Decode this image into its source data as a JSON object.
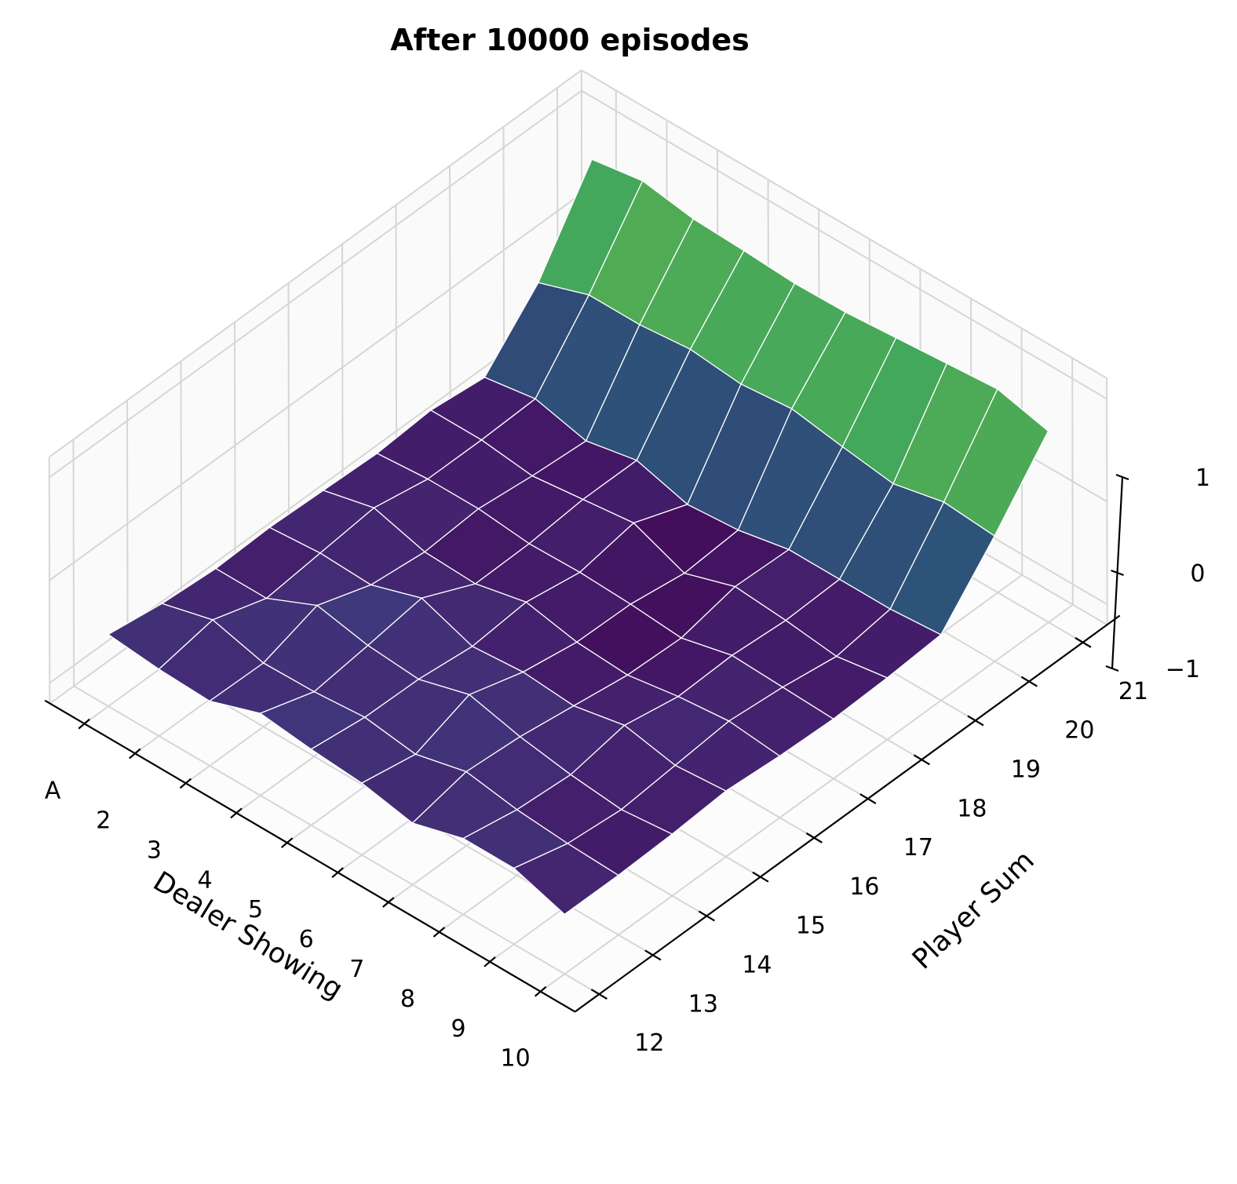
{
  "chart_data": {
    "type": "surface",
    "title": "After 10000 episodes",
    "xlabel": "Dealer Showing",
    "ylabel": "Player Sum",
    "zlabel": "",
    "x_ticks": [
      "A",
      "2",
      "3",
      "4",
      "5",
      "6",
      "7",
      "8",
      "9",
      "10"
    ],
    "y_ticks": [
      "12",
      "13",
      "14",
      "15",
      "16",
      "17",
      "18",
      "19",
      "20",
      "21"
    ],
    "z_ticks": [
      "−1",
      "0",
      "1"
    ],
    "zlim": [
      -1,
      1
    ],
    "colormap": "viridis",
    "grid": true,
    "values": [
      [
        -0.5,
        -0.58,
        -0.62,
        -0.6,
        -0.62,
        -0.64,
        -0.6,
        -0.66,
        -0.12,
        0.7
      ],
      [
        -0.55,
        -0.45,
        -0.62,
        -0.56,
        -0.5,
        -0.6,
        -0.6,
        -0.58,
        0.05,
        0.78
      ],
      [
        -0.57,
        -0.58,
        -0.4,
        -0.58,
        -0.64,
        -0.6,
        -0.66,
        -0.7,
        0.05,
        0.7
      ],
      [
        -0.4,
        -0.57,
        -0.5,
        -0.42,
        -0.66,
        -0.65,
        -0.6,
        -0.6,
        0.1,
        0.68
      ],
      [
        -0.46,
        -0.53,
        -0.54,
        -0.6,
        -0.55,
        -0.64,
        -0.54,
        -0.74,
        0.05,
        0.65
      ],
      [
        -0.5,
        -0.6,
        -0.4,
        -0.56,
        -0.65,
        -0.66,
        -0.74,
        -0.7,
        0.1,
        0.66
      ],
      [
        -0.6,
        -0.48,
        -0.52,
        -0.6,
        -0.68,
        -0.7,
        -0.58,
        -0.6,
        0.02,
        0.7
      ],
      [
        -0.46,
        -0.56,
        -0.6,
        -0.5,
        -0.6,
        -0.58,
        -0.62,
        -0.6,
        -0.05,
        0.74
      ],
      [
        -0.46,
        -0.6,
        -0.65,
        -0.6,
        -0.55,
        -0.6,
        -0.68,
        -0.6,
        0.06,
        0.78
      ],
      [
        -0.62,
        -0.62,
        -0.6,
        -0.56,
        -0.6,
        -0.62,
        -0.6,
        -0.56,
        0.02,
        0.66
      ]
    ]
  }
}
